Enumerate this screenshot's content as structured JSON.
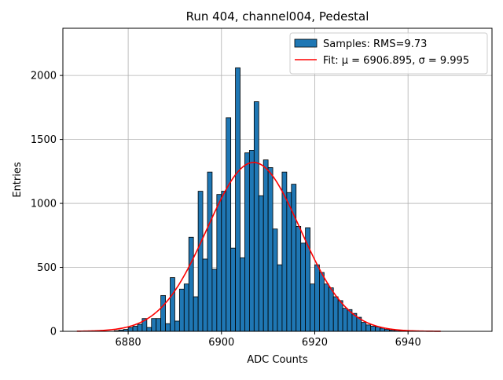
{
  "chart_data": {
    "type": "bar",
    "title": "Run 404, channel004, Pedestal",
    "xlabel": "ADC Counts",
    "ylabel": "Entries",
    "xlim": [
      6866,
      6958
    ],
    "ylim": [
      0,
      2369
    ],
    "xticks": [
      6880,
      6900,
      6920,
      6940
    ],
    "yticks": [
      0,
      500,
      1000,
      1500,
      2000
    ],
    "grid": true,
    "legend_position": "top-right",
    "bar_width": 1,
    "series": [
      {
        "name": "Samples: RMS=9.73",
        "kind": "histogram",
        "color": "#1f77b4",
        "edge_color": "#000000",
        "x": [
          6877,
          6878,
          6879,
          6880,
          6881,
          6882,
          6883,
          6884,
          6885,
          6886,
          6887,
          6888,
          6889,
          6890,
          6891,
          6892,
          6893,
          6894,
          6895,
          6896,
          6897,
          6898,
          6899,
          6900,
          6901,
          6902,
          6903,
          6904,
          6905,
          6906,
          6907,
          6908,
          6909,
          6910,
          6911,
          6912,
          6913,
          6914,
          6915,
          6916,
          6917,
          6918,
          6919,
          6920,
          6921,
          6922,
          6923,
          6924,
          6925,
          6926,
          6927,
          6928,
          6929,
          6930,
          6931,
          6932,
          6933,
          6934,
          6935,
          6936,
          6937,
          6938,
          6939,
          6940,
          6941,
          6942,
          6943
        ],
        "values": [
          5,
          10,
          15,
          30,
          40,
          55,
          100,
          30,
          100,
          100,
          280,
          60,
          420,
          80,
          330,
          370,
          735,
          270,
          1095,
          565,
          1245,
          485,
          1070,
          1095,
          1670,
          650,
          2060,
          575,
          1395,
          1415,
          1795,
          1060,
          1340,
          1280,
          800,
          520,
          1245,
          1085,
          1150,
          820,
          690,
          810,
          370,
          520,
          460,
          370,
          340,
          270,
          240,
          180,
          170,
          140,
          110,
          70,
          50,
          40,
          35,
          25,
          15,
          10,
          8,
          5,
          4,
          3,
          2,
          1,
          1
        ]
      },
      {
        "name": "Fit: μ = 6906.895, σ = 9.995",
        "kind": "gaussian",
        "color": "#ff0000",
        "mu": 6906.895,
        "sigma": 9.995,
        "amplitude": 1320,
        "x_range": [
          6869,
          6947
        ]
      }
    ]
  }
}
